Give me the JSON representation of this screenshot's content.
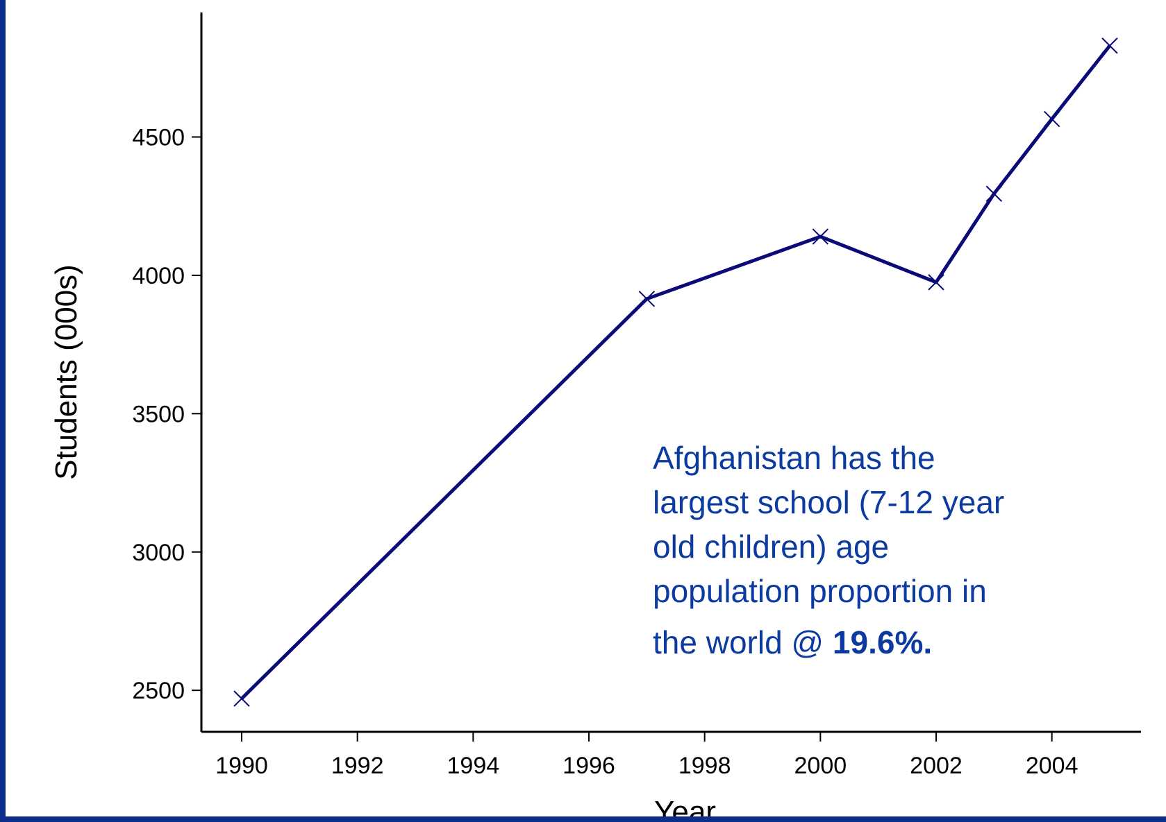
{
  "colors": {
    "frame": "#0b2d8c",
    "line": "#0a0a78",
    "annotation": "#0b3aa0"
  },
  "chart_data": {
    "type": "line",
    "title": "",
    "xlabel": "Year",
    "ylabel": "Students (000s)",
    "xlim": [
      1989.3,
      2006.0
    ],
    "ylim": [
      2350,
      4950
    ],
    "xticks": [
      1990,
      1992,
      1994,
      1996,
      1998,
      2000,
      2002,
      2004
    ],
    "yticks": [
      2500,
      3000,
      3500,
      4000,
      4500
    ],
    "grid": false,
    "marker": "x",
    "series": [
      {
        "x": [
          1990,
          1997,
          2000,
          2002,
          2003,
          2004,
          2005
        ],
        "y": [
          2470,
          3915,
          4140,
          3975,
          4295,
          4565,
          4830
        ]
      }
    ]
  },
  "annotation": {
    "lines": [
      "Afghanistan has the",
      "largest school (7-12 year",
      "old children) age",
      "population proportion in"
    ],
    "last_line_prefix": "the world @ ",
    "highlight": "19.6%."
  }
}
